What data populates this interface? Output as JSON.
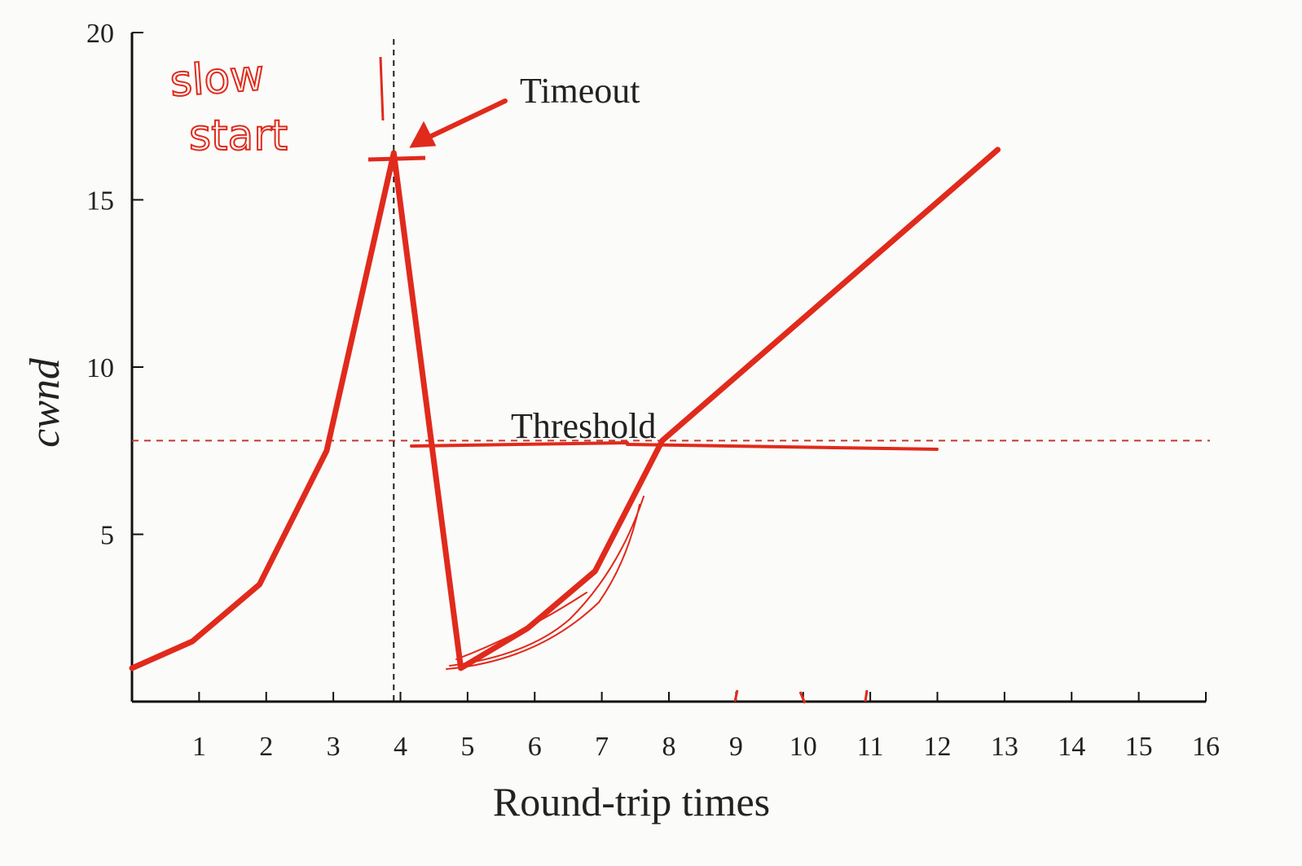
{
  "chart_data": {
    "type": "line",
    "xlabel": "Round-trip times",
    "ylabel": "cwnd",
    "xlim": [
      0,
      16
    ],
    "ylim": [
      0,
      20
    ],
    "x_ticks": [
      "1",
      "2",
      "3",
      "4",
      "5",
      "6",
      "7",
      "8",
      "9",
      "10",
      "11",
      "12",
      "13",
      "14",
      "15",
      "16"
    ],
    "y_ticks": [
      "5",
      "10",
      "15",
      "20"
    ],
    "series": [
      {
        "color": "#e02a1c",
        "points": [
          {
            "x": 0,
            "y": 1
          },
          {
            "x": 0.9,
            "y": 1.8
          },
          {
            "x": 1.9,
            "y": 3.5
          },
          {
            "x": 2.9,
            "y": 7.5
          },
          {
            "x": 3.9,
            "y": 16.4
          },
          {
            "x": 4.9,
            "y": 1
          },
          {
            "x": 5.9,
            "y": 2.2
          },
          {
            "x": 6.9,
            "y": 3.9
          },
          {
            "x": 7.9,
            "y": 7.8
          },
          {
            "x": 12.9,
            "y": 16.5
          }
        ]
      }
    ],
    "threshold": {
      "y": 7.8,
      "label": "Threshold"
    },
    "timeout": {
      "x": 3.9,
      "label": "Timeout"
    },
    "handwritten_note": [
      "slow",
      "start"
    ],
    "grid": false,
    "legend": "none"
  }
}
